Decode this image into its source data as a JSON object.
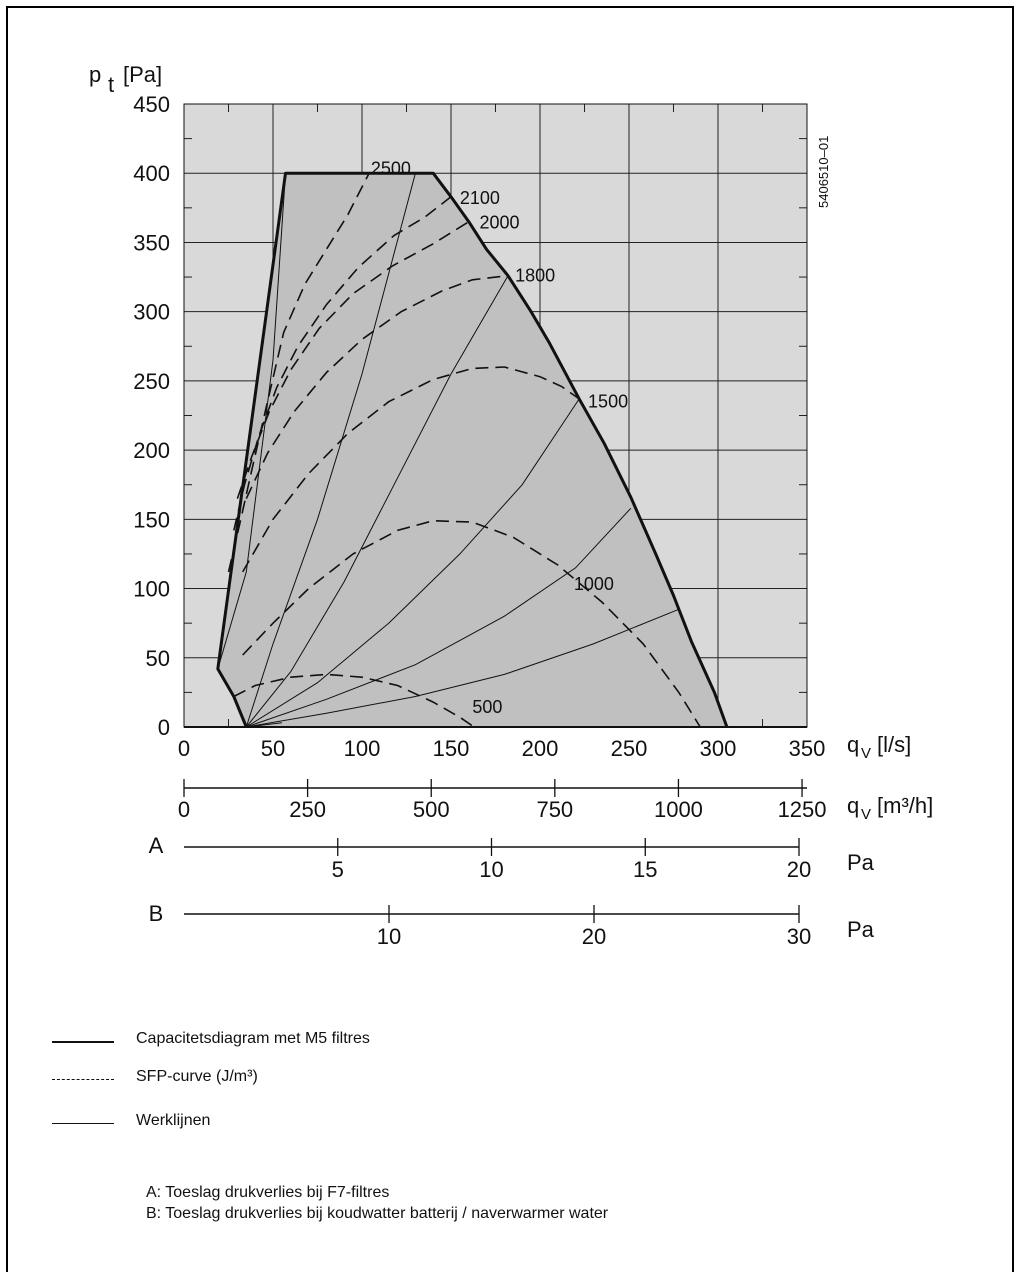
{
  "chart_data": {
    "type": "line",
    "title": "",
    "ylabel_main": "p",
    "ylabel_sub": "t",
    "ylabel_unit": "[Pa]",
    "xlabel_main": "q",
    "xlabel_sub": "V",
    "xlabel_unit": "[l/s]",
    "x2label_unit": "[m³/h]",
    "figure_id": "5406510–01",
    "xlim": [
      0,
      350
    ],
    "ylim": [
      0,
      450
    ],
    "x_ticks": [
      "0",
      "50",
      "100",
      "150",
      "200",
      "250",
      "300",
      "350"
    ],
    "y_ticks": [
      "0",
      "50",
      "100",
      "150",
      "200",
      "250",
      "300",
      "350",
      "400",
      "450"
    ],
    "x2_ticks": [
      "0",
      "250",
      "500",
      "750",
      "1000",
      "1250"
    ],
    "x2_tick_values_ls": [
      0,
      69.44,
      138.89,
      208.33,
      277.78,
      347.22
    ],
    "grid": true,
    "capacity_curve": {
      "name": "Capacitetsdiagram met M5 filtres",
      "points": [
        [
          35,
          0
        ],
        [
          28,
          22
        ],
        [
          19,
          42
        ],
        [
          57,
          400
        ],
        [
          140,
          400
        ],
        [
          150,
          383
        ],
        [
          160,
          365
        ],
        [
          170,
          345
        ],
        [
          182,
          326
        ],
        [
          195,
          300
        ],
        [
          205,
          278
        ],
        [
          222,
          237
        ],
        [
          236,
          205
        ],
        [
          251,
          166
        ],
        [
          265,
          125
        ],
        [
          275,
          95
        ],
        [
          285,
          62
        ],
        [
          298,
          25
        ],
        [
          305,
          0
        ]
      ]
    },
    "sfp_curves": [
      {
        "label": "2500",
        "points": [
          [
            25,
            112
          ],
          [
            31,
            145
          ],
          [
            38,
            185
          ],
          [
            46,
            230
          ],
          [
            56,
            285
          ],
          [
            68,
            320
          ],
          [
            80,
            345
          ],
          [
            92,
            370
          ],
          [
            104,
            400
          ]
        ]
      },
      {
        "label": "2100",
        "points": [
          [
            28,
            142
          ],
          [
            34,
            175
          ],
          [
            42,
            210
          ],
          [
            52,
            245
          ],
          [
            64,
            275
          ],
          [
            80,
            305
          ],
          [
            98,
            332
          ],
          [
            118,
            355
          ],
          [
            135,
            368
          ],
          [
            150,
            383
          ]
        ]
      },
      {
        "label": "2000",
        "points": [
          [
            30,
            165
          ],
          [
            38,
            195
          ],
          [
            48,
            228
          ],
          [
            60,
            258
          ],
          [
            76,
            288
          ],
          [
            95,
            313
          ],
          [
            117,
            333
          ],
          [
            140,
            349
          ],
          [
            160,
            365
          ]
        ]
      },
      {
        "label": "1800",
        "points": [
          [
            35,
            165
          ],
          [
            47,
            198
          ],
          [
            62,
            228
          ],
          [
            80,
            256
          ],
          [
            100,
            280
          ],
          [
            122,
            300
          ],
          [
            145,
            315
          ],
          [
            162,
            323
          ],
          [
            182,
            326
          ]
        ]
      },
      {
        "label": "1500",
        "points": [
          [
            33,
            112
          ],
          [
            50,
            150
          ],
          [
            70,
            183
          ],
          [
            92,
            212
          ],
          [
            115,
            235
          ],
          [
            140,
            251
          ],
          [
            162,
            259
          ],
          [
            180,
            260
          ],
          [
            200,
            253
          ],
          [
            212,
            246
          ],
          [
            222,
            237
          ]
        ]
      },
      {
        "label": "1000",
        "points": [
          [
            33,
            52
          ],
          [
            50,
            75
          ],
          [
            70,
            100
          ],
          [
            95,
            125
          ],
          [
            120,
            142
          ],
          [
            140,
            149
          ],
          [
            162,
            148
          ],
          [
            185,
            137
          ],
          [
            210,
            117
          ],
          [
            235,
            90
          ],
          [
            258,
            60
          ],
          [
            278,
            25
          ],
          [
            290,
            0
          ]
        ]
      },
      {
        "label": "500",
        "points": [
          [
            28,
            22
          ],
          [
            40,
            30
          ],
          [
            60,
            36
          ],
          [
            80,
            38
          ],
          [
            100,
            36
          ],
          [
            120,
            30
          ],
          [
            140,
            18
          ],
          [
            155,
            7
          ],
          [
            163,
            0
          ]
        ]
      }
    ],
    "work_lines": [
      {
        "points": [
          [
            19,
            42
          ],
          [
            35,
            112
          ],
          [
            50,
            265
          ],
          [
            57,
            400
          ]
        ]
      },
      {
        "points": [
          [
            35,
            0
          ],
          [
            50,
            60
          ],
          [
            75,
            150
          ],
          [
            100,
            255
          ],
          [
            130,
            400
          ]
        ]
      },
      {
        "points": [
          [
            35,
            0
          ],
          [
            60,
            40
          ],
          [
            90,
            105
          ],
          [
            120,
            180
          ],
          [
            150,
            255
          ],
          [
            182,
            326
          ]
        ]
      },
      {
        "points": [
          [
            35,
            0
          ],
          [
            75,
            32
          ],
          [
            115,
            75
          ],
          [
            155,
            125
          ],
          [
            190,
            175
          ],
          [
            222,
            237
          ]
        ]
      },
      {
        "points": [
          [
            35,
            0
          ],
          [
            80,
            20
          ],
          [
            130,
            45
          ],
          [
            180,
            80
          ],
          [
            220,
            115
          ],
          [
            251,
            158
          ]
        ]
      },
      {
        "points": [
          [
            35,
            0
          ],
          [
            80,
            10
          ],
          [
            130,
            22
          ],
          [
            180,
            38
          ],
          [
            230,
            60
          ],
          [
            278,
            85
          ]
        ]
      },
      {
        "points": [
          [
            35,
            0
          ],
          [
            55,
            3
          ]
        ]
      }
    ],
    "curve_labels": [
      {
        "text": "2500",
        "x": 105,
        "y": 404,
        "anchor": "start"
      },
      {
        "text": "2100",
        "x": 155,
        "y": 383,
        "anchor": "start"
      },
      {
        "text": "2000",
        "x": 166,
        "y": 365,
        "anchor": "start"
      },
      {
        "text": "1800",
        "x": 186,
        "y": 327,
        "anchor": "start"
      },
      {
        "text": "1500",
        "x": 227,
        "y": 236,
        "anchor": "start"
      },
      {
        "text": "1000",
        "x": 219,
        "y": 104,
        "anchor": "start"
      },
      {
        "text": "500",
        "x": 162,
        "y": 15,
        "anchor": "start"
      }
    ],
    "scale_A": {
      "label": "A",
      "unit": "Pa",
      "max": 20,
      "ticks": [
        "5",
        "10",
        "15",
        "20"
      ],
      "tick_values": [
        5,
        10,
        15,
        20
      ]
    },
    "scale_B": {
      "label": "B",
      "unit": "Pa",
      "max": 30,
      "ticks": [
        "10",
        "20",
        "30"
      ],
      "tick_values": [
        10,
        20,
        30
      ]
    }
  },
  "legend": {
    "capacity": "Capacitetsdiagram met M5 filtres",
    "sfp": "SFP-curve (J/m³)",
    "work": "Werklijnen"
  },
  "notes": {
    "a": "A: Toeslag drukverlies bij F7-filtres",
    "b": "B: Toeslag drukverlies bij koudwatter batterij / naverwarmer water"
  },
  "colors": {
    "plot_bg": "#d9d9d9",
    "envelope_fill": "#c0c0c0",
    "ink": "#111111"
  }
}
